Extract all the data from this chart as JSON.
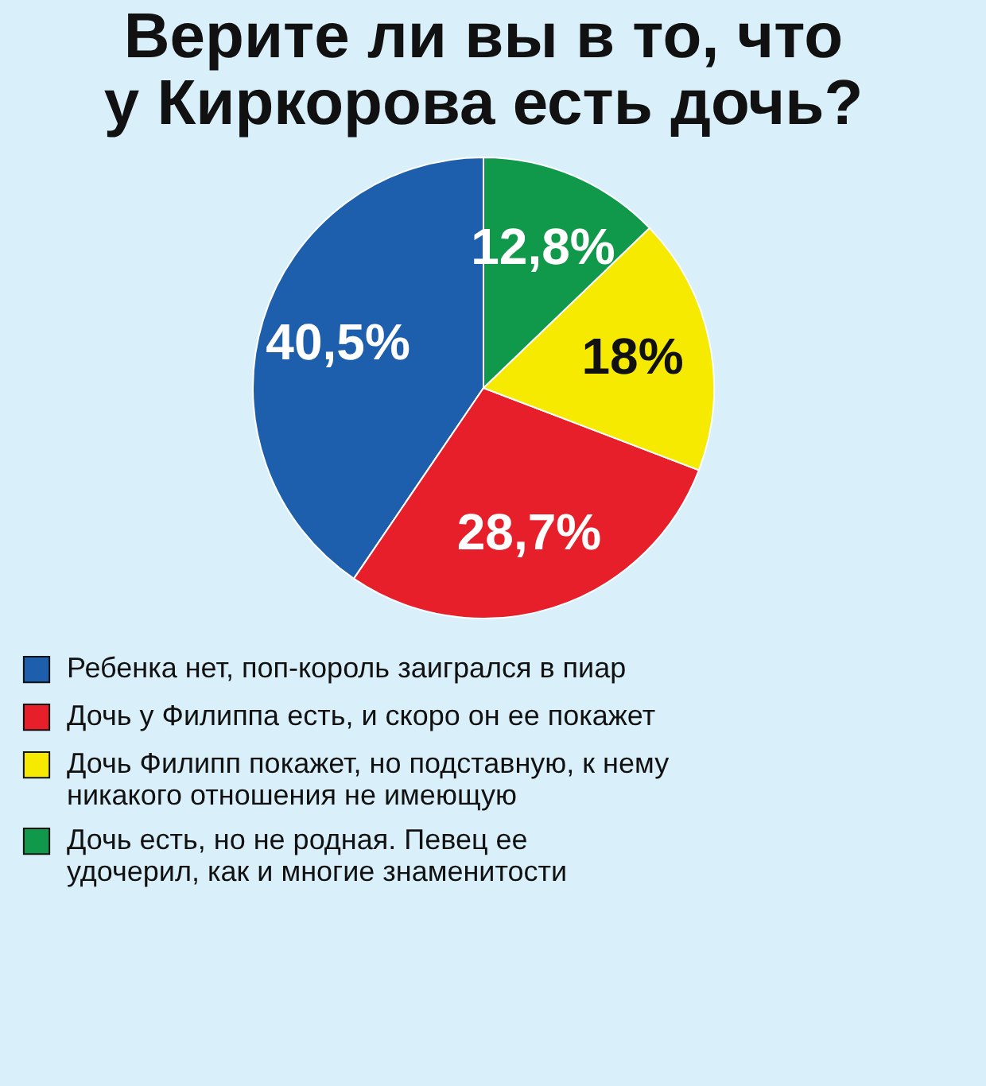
{
  "chart_data": {
    "type": "pie",
    "title": "Верите ли вы в то, что у Киркорова есть дочь?",
    "categories": [
      "Ребенка нет, поп-король заигрался в пиар",
      "Дочь у Филиппа есть, и скоро он ее покажет",
      "Дочь Филипп покажет, но подставную, к нему никакого отношения не имеющую",
      "Дочь есть, но не родная. Певец ее удочерил, как и многие знаменитости"
    ],
    "values": [
      40.5,
      28.7,
      18,
      12.8
    ],
    "value_labels": [
      "40,5%",
      "28,7%",
      "18%",
      "12,8%"
    ],
    "colors": [
      "#1d5ead",
      "#e61f2b",
      "#f6ea00",
      "#11994b"
    ],
    "legend": "bottom"
  }
}
